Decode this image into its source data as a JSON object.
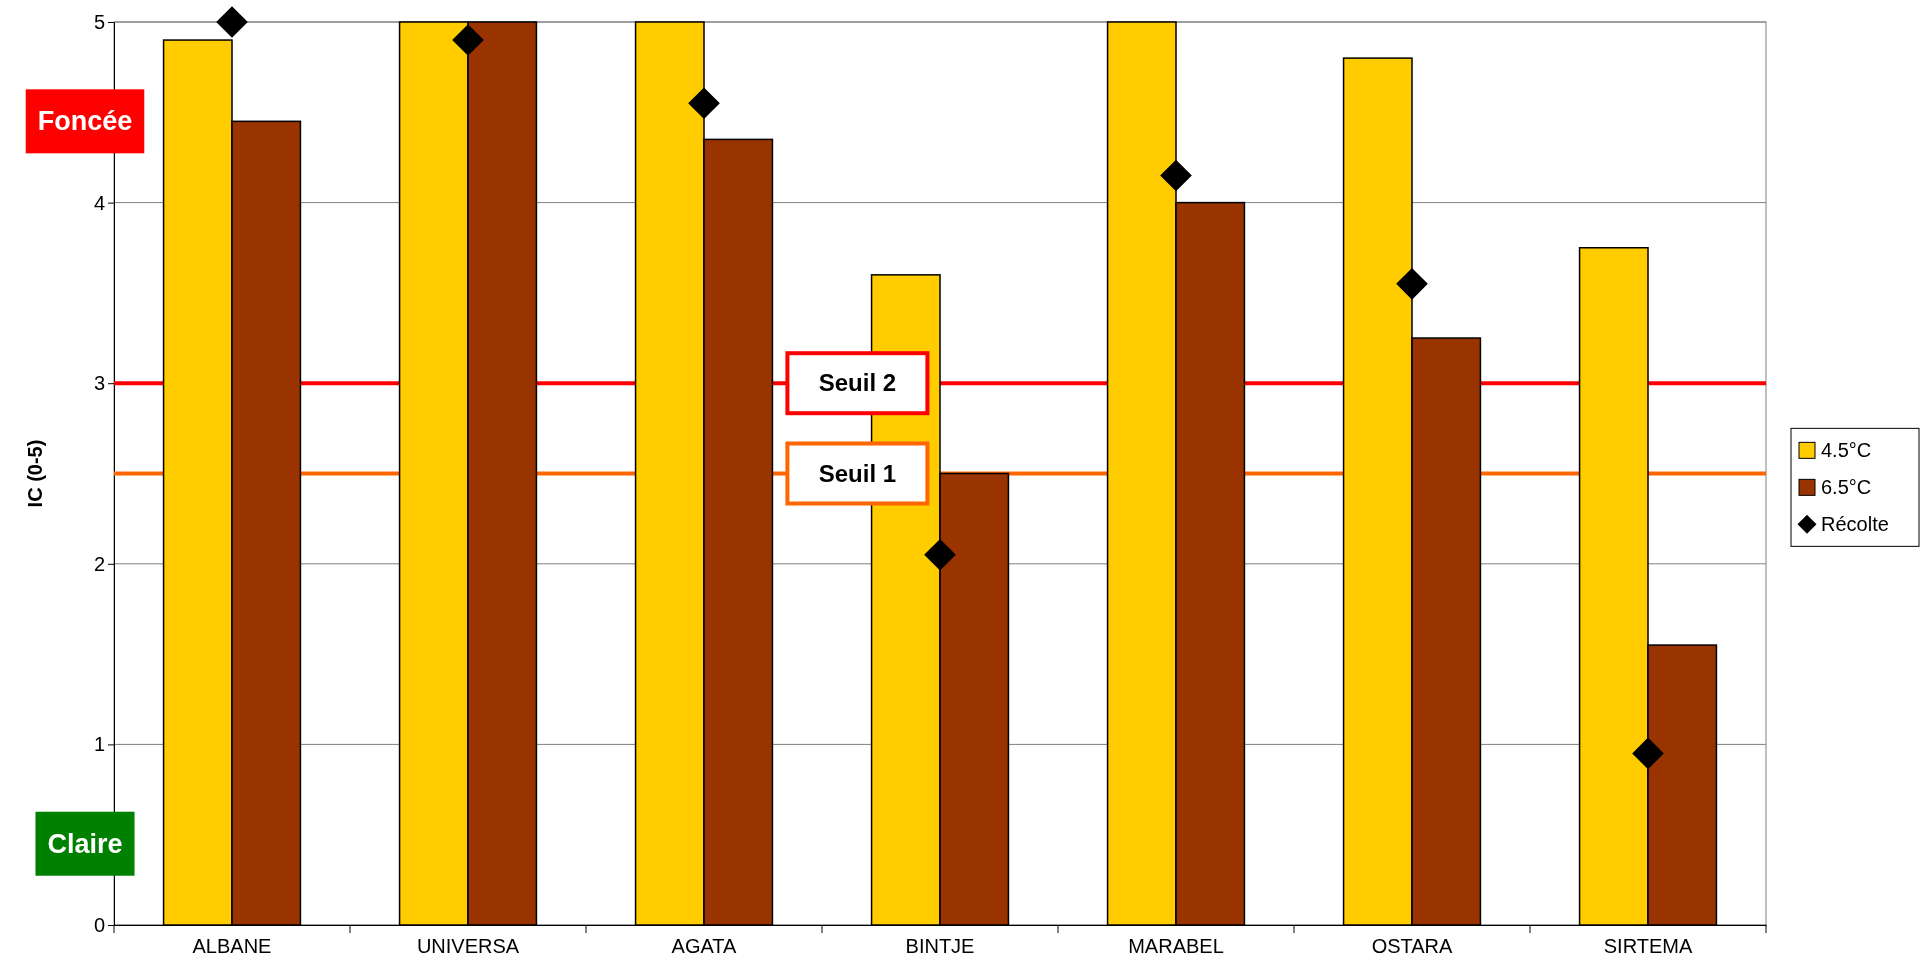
{
  "chart_data": {
    "type": "bar",
    "ylabel": "IC (0-5)",
    "categories": [
      "ALBANE",
      "UNIVERSA",
      "AGATA",
      "BINTJE",
      "MARABEL",
      "OSTARA",
      "SIRTEMA"
    ],
    "series": [
      {
        "name": "4.5°C",
        "color": "#ffcc00",
        "values": [
          4.9,
          5,
          5,
          3.6,
          5,
          4.8,
          3.75
        ]
      },
      {
        "name": "6.5°C",
        "color": "#993300",
        "values": [
          4.45,
          5,
          4.35,
          2.5,
          4.0,
          3.25,
          1.55
        ]
      },
      {
        "name": "Récolte",
        "type": "scatter",
        "marker": "diamond",
        "color": "#000000",
        "x": [
          "ALBANE",
          "UNIVERSA",
          "AGATA",
          "BINTJE",
          "MARABEL",
          "OSTARA",
          "SIRTEMA"
        ],
        "values": [
          5,
          4.9,
          4.55,
          2.05,
          4.15,
          3.55,
          0.95
        ]
      }
    ],
    "ylim": [
      0,
      5
    ],
    "yticks": [
      0,
      1,
      2,
      3,
      4,
      5
    ],
    "grid": "y",
    "legend": "right",
    "ref_lines": [
      {
        "axis": "y",
        "value": 3,
        "label": "Seuil 2",
        "color": "#ff0000"
      },
      {
        "axis": "y",
        "value": 2.5,
        "label": "Seuil 1",
        "color": "#ff6600"
      }
    ],
    "annotations": [
      "Foncée",
      "Claire"
    ]
  }
}
